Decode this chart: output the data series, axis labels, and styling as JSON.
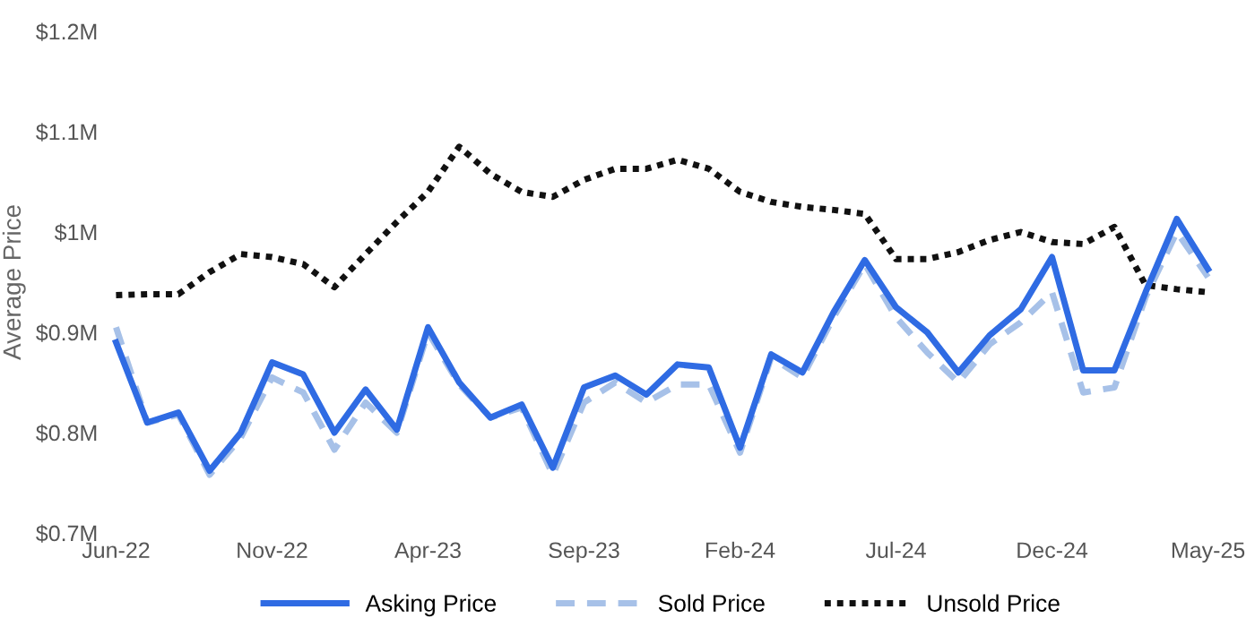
{
  "chart_data": {
    "type": "line",
    "ylabel": "Average Price",
    "categories": [
      "Jun-22",
      null,
      null,
      null,
      null,
      "Nov-22",
      null,
      null,
      null,
      null,
      "Apr-23",
      null,
      null,
      null,
      null,
      "Sep-23",
      null,
      null,
      null,
      null,
      "Feb-24",
      null,
      null,
      null,
      null,
      "Jul-24",
      null,
      null,
      null,
      null,
      "Dec-24",
      null,
      null,
      null,
      null,
      "May-25"
    ],
    "series": [
      {
        "name": "Asking Price",
        "color": "#2f6be3",
        "line_style": "solid",
        "values": [
          0.89,
          0.81,
          0.82,
          0.762,
          0.8,
          0.87,
          0.858,
          0.8,
          0.843,
          0.803,
          0.905,
          0.85,
          0.815,
          0.828,
          0.765,
          0.845,
          0.857,
          0.838,
          0.868,
          0.865,
          0.785,
          0.878,
          0.86,
          0.92,
          0.972,
          0.925,
          0.9,
          0.86,
          0.897,
          0.923,
          0.975,
          0.862,
          0.862,
          0.94,
          1.013,
          0.963
        ]
      },
      {
        "name": "Sold Price",
        "color": "#a7c1e8",
        "line_style": "dashed",
        "values": [
          0.905,
          0.81,
          0.818,
          0.758,
          0.795,
          0.855,
          0.84,
          0.783,
          0.83,
          0.8,
          0.9,
          0.848,
          0.815,
          0.825,
          0.758,
          0.83,
          0.85,
          0.83,
          0.848,
          0.848,
          0.78,
          0.875,
          0.855,
          0.915,
          0.968,
          0.915,
          0.88,
          0.85,
          0.888,
          0.91,
          0.94,
          0.84,
          0.845,
          0.935,
          1.0,
          0.955
        ]
      },
      {
        "name": "Unsold Price",
        "color": "#111111",
        "line_style": "dotted",
        "values": [
          0.937,
          0.938,
          0.938,
          0.96,
          0.978,
          0.975,
          0.968,
          0.945,
          0.978,
          1.01,
          1.04,
          1.085,
          1.058,
          1.04,
          1.035,
          1.052,
          1.063,
          1.063,
          1.072,
          1.063,
          1.04,
          1.03,
          1.025,
          1.022,
          1.018,
          0.973,
          0.973,
          0.98,
          0.992,
          1.0,
          0.99,
          0.988,
          1.005,
          0.947,
          0.943,
          0.94
        ]
      }
    ],
    "ylim": [
      0.7,
      1.2
    ],
    "yticks": [
      {
        "value": 0.7,
        "label": "$0.7M"
      },
      {
        "value": 0.8,
        "label": "$0.8M"
      },
      {
        "value": 0.9,
        "label": "$0.9M"
      },
      {
        "value": 1.0,
        "label": "$1M"
      },
      {
        "value": 1.1,
        "label": "$1.1M"
      },
      {
        "value": 1.2,
        "label": "$1.2M"
      }
    ],
    "grid": false,
    "legend": "bottom",
    "marker": "none"
  }
}
